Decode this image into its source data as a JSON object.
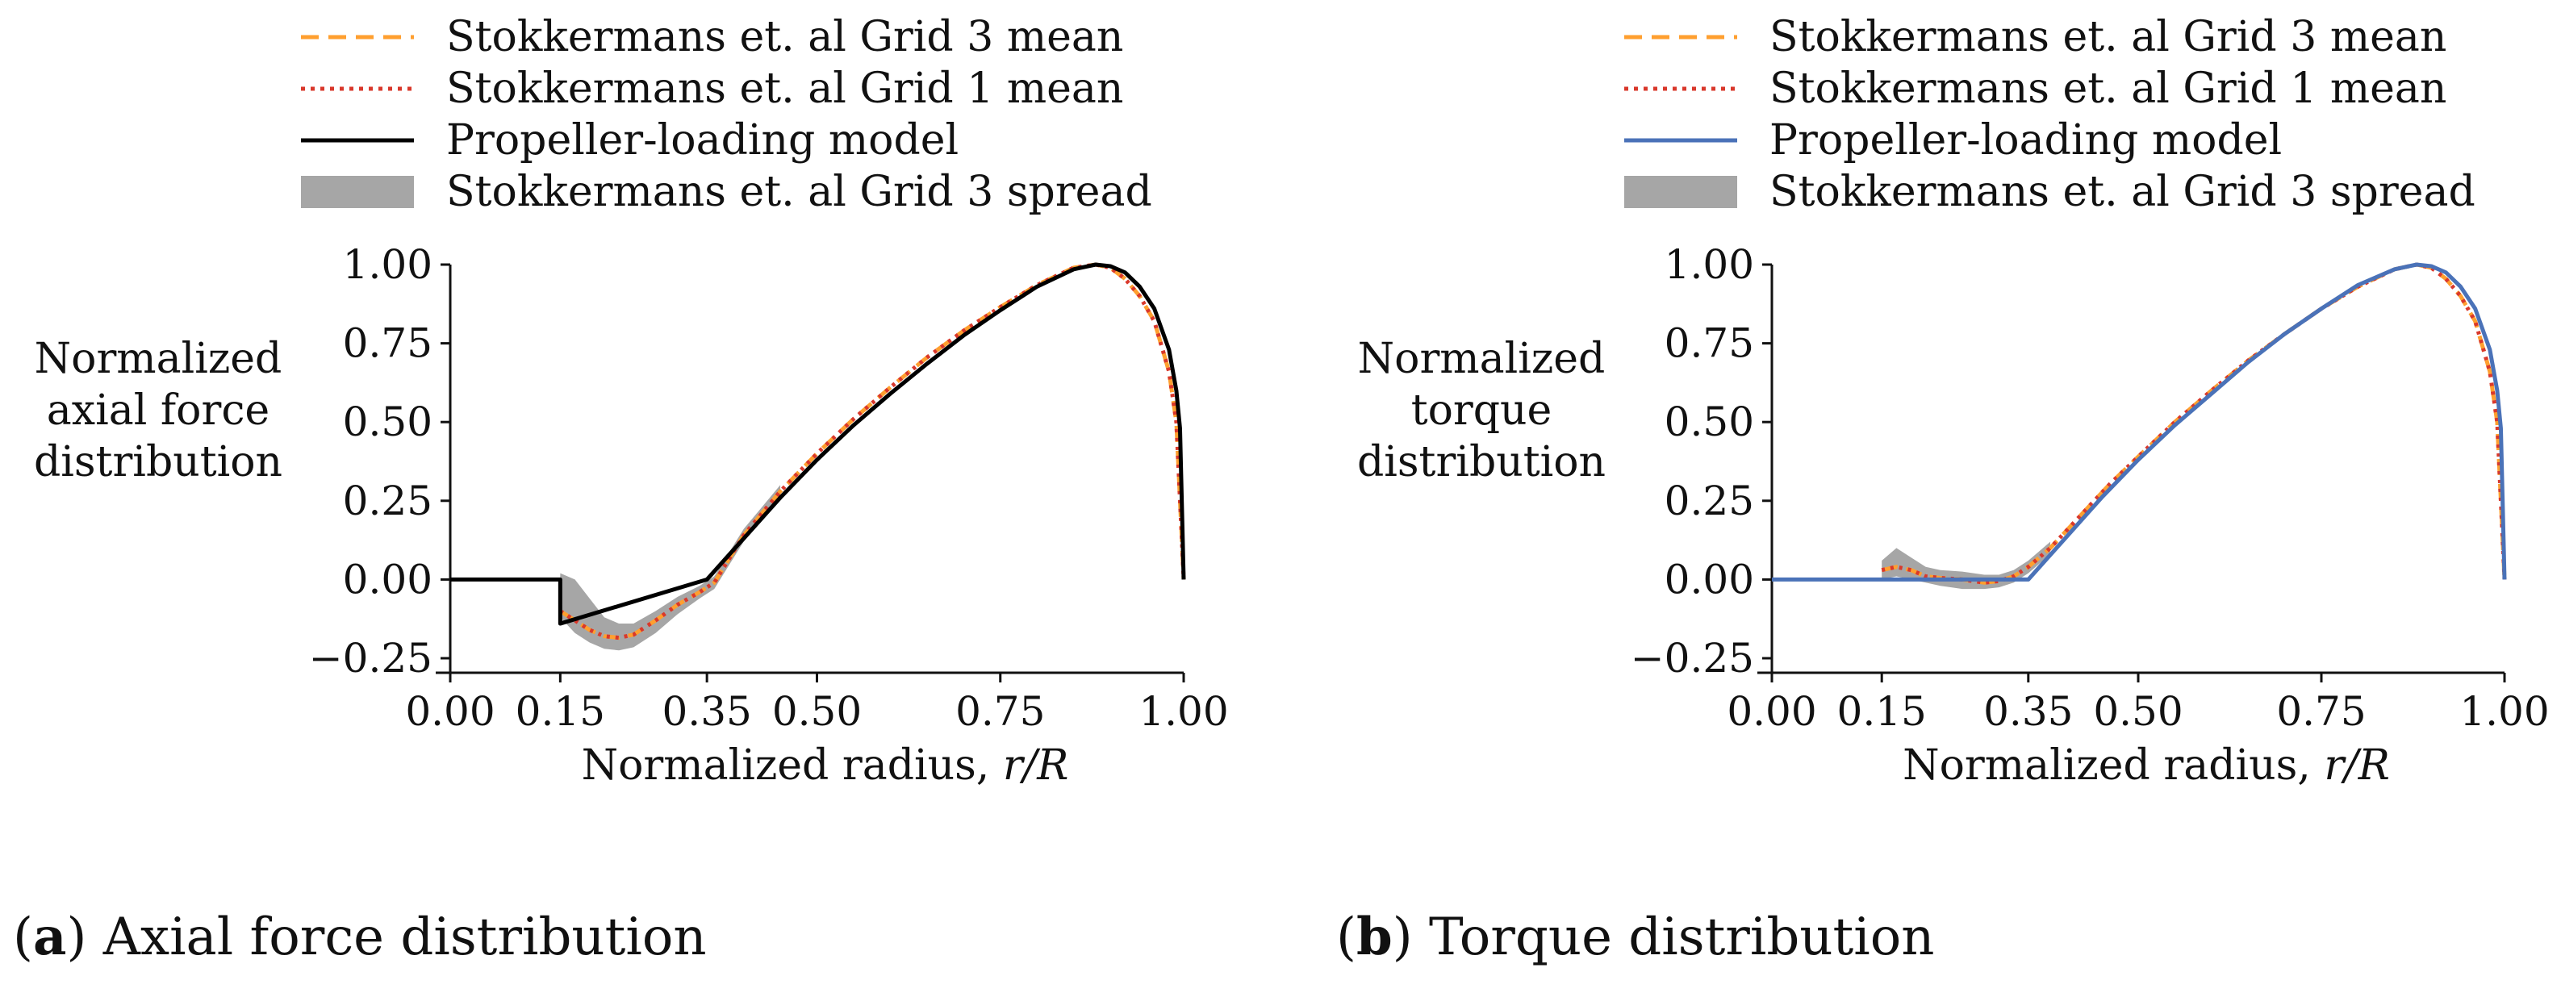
{
  "colors": {
    "grid3_mean": "#ff9f2f",
    "grid1_mean": "#d9382b",
    "model_a": "#000000",
    "model_b": "#4a72b8",
    "spread": "#a6a6a6",
    "axis": "#111111"
  },
  "captions": [
    {
      "tag": "a",
      "text": "Axial force distribution"
    },
    {
      "tag": "b",
      "text": "Torque distribution"
    }
  ],
  "chart_data": [
    {
      "type": "line",
      "id": "axial",
      "legend": [
        "Stokkermans et. al Grid 3 mean",
        "Stokkermans et. al Grid 1 mean",
        "Propeller-loading model",
        "Stokkermans et. al Grid 3 spread"
      ],
      "legend_position": "top",
      "xlabel_main": "Normalized radius, ",
      "xlabel_math": "r/R",
      "ylabel": [
        "Normalized",
        "axial force",
        "distribution"
      ],
      "xlim": [
        0,
        1
      ],
      "ylim": [
        -0.25,
        1.0
      ],
      "xticks": [
        0,
        0.15,
        0.35,
        0.5,
        0.75,
        1.0
      ],
      "xtick_labels": [
        "0.00",
        "0.15",
        "0.35",
        "0.50",
        "0.75",
        "1.00"
      ],
      "yticks": [
        -0.25,
        0,
        0.25,
        0.5,
        0.75,
        1.0
      ],
      "ytick_labels": [
        "−0.25",
        "0.00",
        "0.25",
        "0.50",
        "0.75",
        "1.00"
      ],
      "series": [
        {
          "name": "Propeller-loading model",
          "style": "solid",
          "x": [
            0,
            0.15,
            0.15,
            0.35,
            0.4,
            0.45,
            0.5,
            0.55,
            0.6,
            0.65,
            0.7,
            0.75,
            0.8,
            0.85,
            0.88,
            0.9,
            0.92,
            0.94,
            0.96,
            0.98,
            0.99,
            0.995,
            1.0
          ],
          "y": [
            0,
            0,
            -0.14,
            0,
            0.13,
            0.26,
            0.38,
            0.49,
            0.59,
            0.685,
            0.775,
            0.855,
            0.93,
            0.985,
            1.0,
            0.995,
            0.975,
            0.93,
            0.86,
            0.73,
            0.6,
            0.48,
            0
          ]
        },
        {
          "name": "Stokkermans et. al Grid 3 mean",
          "style": "dashed",
          "x": [
            0.15,
            0.17,
            0.19,
            0.21,
            0.23,
            0.25,
            0.28,
            0.31,
            0.34,
            0.36,
            0.4,
            0.45,
            0.5,
            0.55,
            0.6,
            0.65,
            0.7,
            0.75,
            0.8,
            0.85,
            0.88,
            0.9,
            0.92,
            0.94,
            0.96,
            0.98,
            0.99,
            1.0
          ],
          "y": [
            -0.1,
            -0.13,
            -0.16,
            -0.18,
            -0.185,
            -0.175,
            -0.13,
            -0.08,
            -0.04,
            -0.01,
            0.14,
            0.28,
            0.4,
            0.51,
            0.61,
            0.705,
            0.79,
            0.865,
            0.935,
            0.99,
            1.0,
            0.99,
            0.955,
            0.9,
            0.82,
            0.66,
            0.5,
            0.0
          ]
        },
        {
          "name": "Stokkermans et. al Grid 1 mean",
          "style": "dotted",
          "x": [
            0.15,
            0.17,
            0.19,
            0.21,
            0.23,
            0.25,
            0.28,
            0.31,
            0.34,
            0.36,
            0.4,
            0.45,
            0.5,
            0.55,
            0.6,
            0.65,
            0.7,
            0.75,
            0.8,
            0.85,
            0.88,
            0.9,
            0.92,
            0.94,
            0.96,
            0.98,
            0.99,
            1.0
          ],
          "y": [
            -0.1,
            -0.13,
            -0.16,
            -0.18,
            -0.185,
            -0.175,
            -0.13,
            -0.08,
            -0.04,
            -0.01,
            0.14,
            0.28,
            0.4,
            0.51,
            0.61,
            0.705,
            0.79,
            0.865,
            0.935,
            0.99,
            1.0,
            0.99,
            0.955,
            0.9,
            0.82,
            0.66,
            0.5,
            0.0
          ]
        }
      ],
      "spread": {
        "name": "Stokkermans et. al Grid 3 spread",
        "x": [
          0.15,
          0.17,
          0.19,
          0.21,
          0.23,
          0.25,
          0.28,
          0.31,
          0.34,
          0.36,
          0.4,
          0.45
        ],
        "lower": [
          -0.12,
          -0.17,
          -0.2,
          -0.22,
          -0.225,
          -0.215,
          -0.17,
          -0.11,
          -0.06,
          -0.03,
          0.12,
          0.26
        ],
        "upper": [
          0.02,
          0.0,
          -0.06,
          -0.12,
          -0.14,
          -0.14,
          -0.1,
          -0.055,
          -0.02,
          0.01,
          0.16,
          0.3
        ]
      }
    },
    {
      "type": "line",
      "id": "torque",
      "legend": [
        "Stokkermans et. al Grid 3 mean",
        "Stokkermans et. al Grid 1 mean",
        "Propeller-loading model",
        "Stokkermans et. al Grid 3 spread"
      ],
      "legend_position": "top",
      "xlabel_main": "Normalized radius, ",
      "xlabel_math": "r/R",
      "ylabel": [
        "Normalized",
        "torque",
        "distribution"
      ],
      "xlim": [
        0,
        1
      ],
      "ylim": [
        -0.25,
        1.0
      ],
      "xticks": [
        0,
        0.15,
        0.35,
        0.5,
        0.75,
        1.0
      ],
      "xtick_labels": [
        "0.00",
        "0.15",
        "0.35",
        "0.50",
        "0.75",
        "1.00"
      ],
      "yticks": [
        -0.25,
        0,
        0.25,
        0.5,
        0.75,
        1.0
      ],
      "ytick_labels": [
        "−0.25",
        "0.00",
        "0.25",
        "0.50",
        "0.75",
        "1.00"
      ],
      "series": [
        {
          "name": "Propeller-loading model",
          "style": "solid",
          "x": [
            0,
            0.35,
            0.4,
            0.45,
            0.5,
            0.55,
            0.6,
            0.65,
            0.7,
            0.75,
            0.8,
            0.85,
            0.88,
            0.9,
            0.92,
            0.94,
            0.96,
            0.98,
            0.99,
            0.995,
            1.0
          ],
          "y": [
            0,
            0,
            0.13,
            0.26,
            0.38,
            0.49,
            0.59,
            0.69,
            0.78,
            0.86,
            0.935,
            0.985,
            1.0,
            0.995,
            0.975,
            0.93,
            0.86,
            0.73,
            0.6,
            0.48,
            0
          ]
        },
        {
          "name": "Stokkermans et. al Grid 3 mean",
          "style": "dashed",
          "x": [
            0.15,
            0.17,
            0.19,
            0.21,
            0.23,
            0.26,
            0.29,
            0.31,
            0.33,
            0.35,
            0.38,
            0.42,
            0.46,
            0.5,
            0.55,
            0.6,
            0.65,
            0.7,
            0.75,
            0.8,
            0.85,
            0.88,
            0.9,
            0.92,
            0.94,
            0.96,
            0.98,
            0.99,
            1.0
          ],
          "y": [
            0.03,
            0.04,
            0.03,
            0.01,
            0.005,
            0.0,
            -0.01,
            -0.005,
            0.01,
            0.04,
            0.1,
            0.2,
            0.3,
            0.39,
            0.5,
            0.6,
            0.695,
            0.78,
            0.86,
            0.93,
            0.985,
            1.0,
            0.99,
            0.955,
            0.9,
            0.82,
            0.66,
            0.5,
            0.0
          ]
        },
        {
          "name": "Stokkermans et. al Grid 1 mean",
          "style": "dotted",
          "x": [
            0.15,
            0.17,
            0.19,
            0.21,
            0.23,
            0.26,
            0.29,
            0.31,
            0.33,
            0.35,
            0.38,
            0.42,
            0.46,
            0.5,
            0.55,
            0.6,
            0.65,
            0.7,
            0.75,
            0.8,
            0.85,
            0.88,
            0.9,
            0.92,
            0.94,
            0.96,
            0.98,
            0.99,
            1.0
          ],
          "y": [
            0.03,
            0.04,
            0.03,
            0.01,
            0.005,
            0.0,
            -0.01,
            -0.005,
            0.01,
            0.04,
            0.1,
            0.2,
            0.3,
            0.39,
            0.5,
            0.6,
            0.695,
            0.78,
            0.86,
            0.93,
            0.985,
            1.0,
            0.99,
            0.955,
            0.9,
            0.82,
            0.66,
            0.5,
            0.0
          ]
        }
      ],
      "spread": {
        "name": "Stokkermans et. al Grid 3 spread",
        "x": [
          0.15,
          0.17,
          0.19,
          0.21,
          0.23,
          0.26,
          0.29,
          0.31,
          0.33,
          0.35,
          0.38
        ],
        "lower": [
          0.0,
          0.01,
          0.0,
          -0.01,
          -0.02,
          -0.03,
          -0.03,
          -0.025,
          -0.01,
          0.02,
          0.08
        ],
        "upper": [
          0.06,
          0.1,
          0.07,
          0.04,
          0.03,
          0.025,
          0.015,
          0.015,
          0.03,
          0.06,
          0.12
        ]
      }
    }
  ]
}
